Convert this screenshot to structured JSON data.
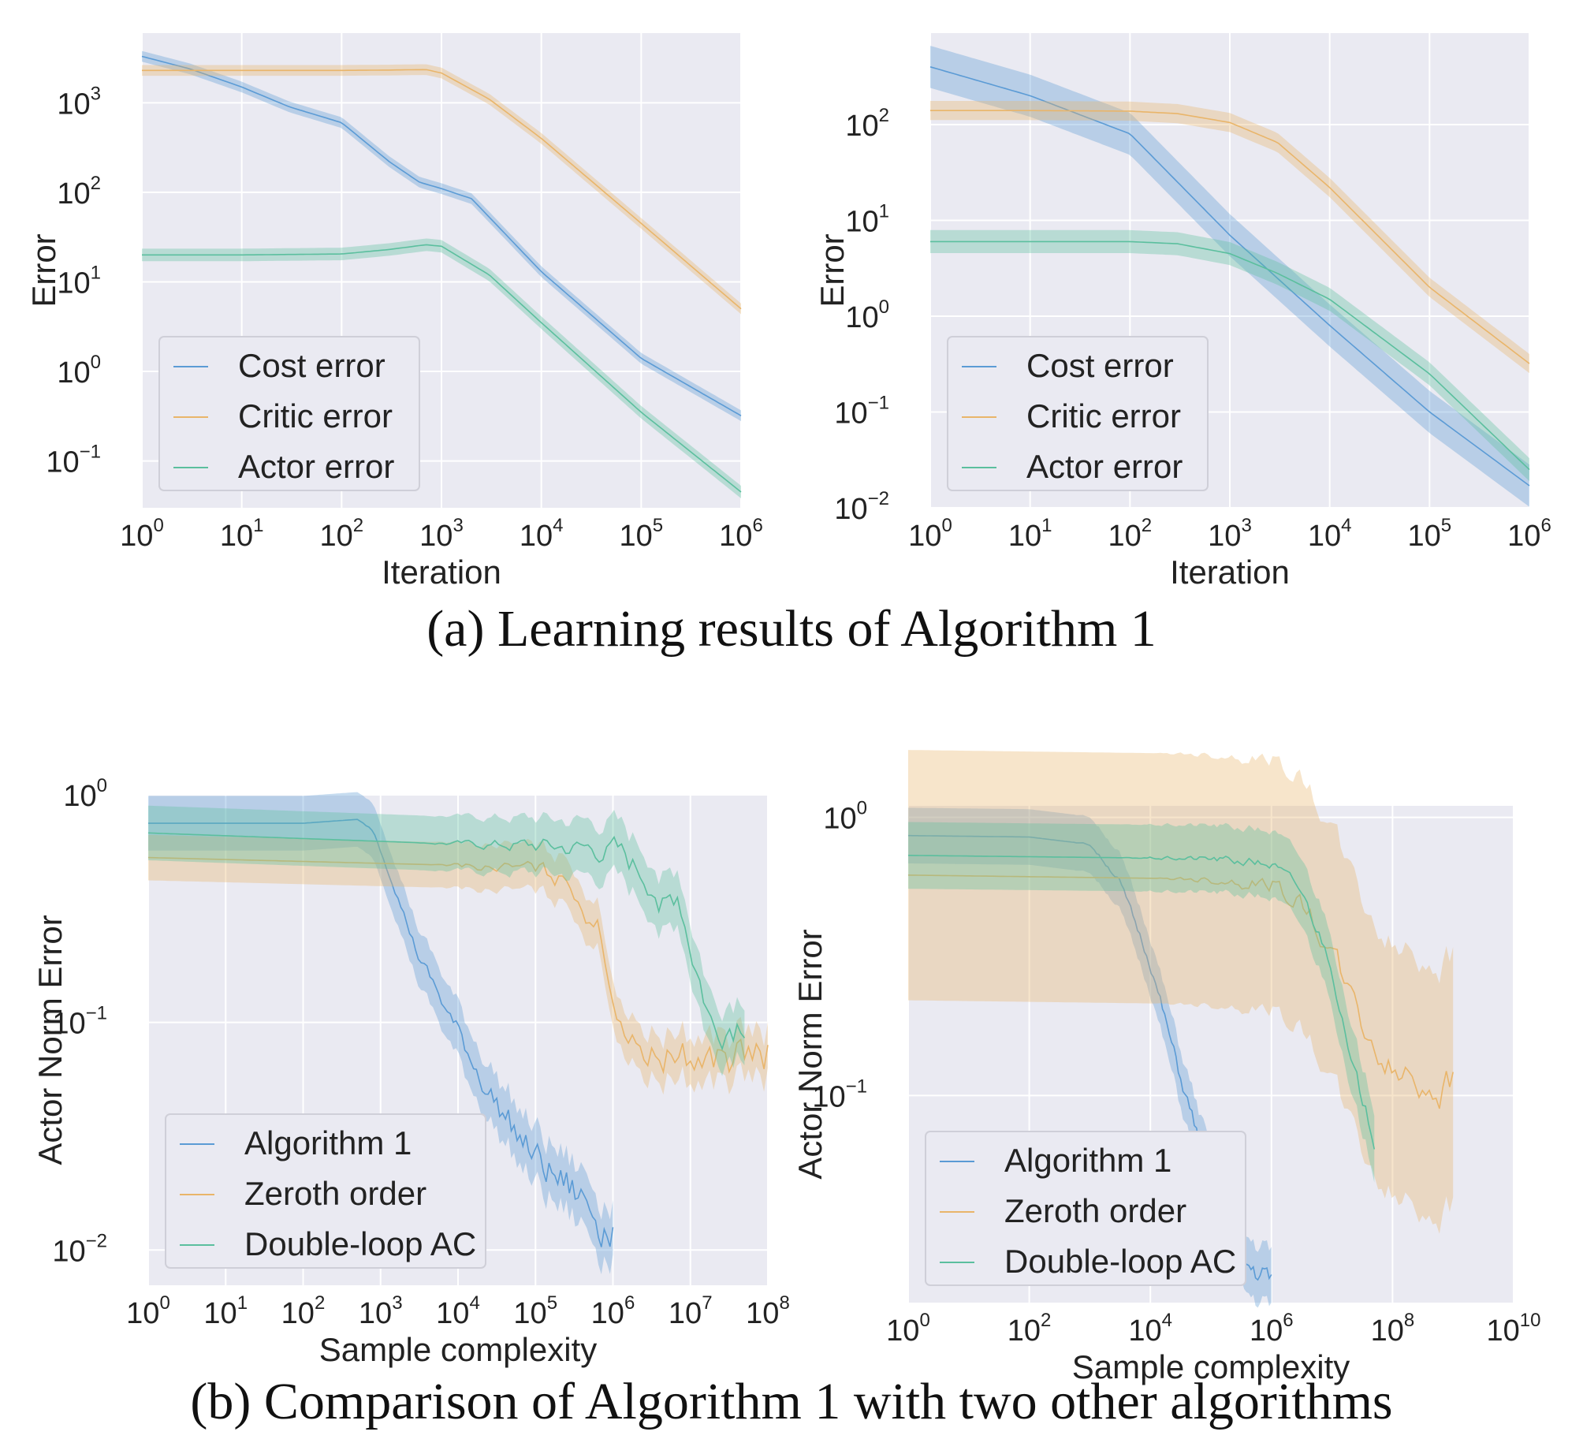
{
  "figure": {
    "caption_a": "(a) Learning results of Algorithm 1",
    "caption_b": "(b) Comparison of Algorithm 1 with two other algorithms"
  },
  "colors": {
    "panel_bg": "#EAEAF2",
    "grid": "#FFFFFF",
    "blue": "#5B9BD5",
    "orange": "#E9B56A",
    "green": "#5BBF9E"
  },
  "chart_data": [
    {
      "id": "a-left",
      "type": "line",
      "xscale": "log",
      "yscale": "log",
      "xlim": [
        1,
        1000000
      ],
      "ylim": [
        0.03,
        6000
      ],
      "xticks": [
        1,
        10,
        100,
        1000,
        10000,
        100000,
        1000000
      ],
      "xtick_exp": [
        "0",
        "1",
        "2",
        "3",
        "4",
        "5",
        "6"
      ],
      "yticks": [
        0.1,
        1,
        10,
        100,
        1000
      ],
      "ytick_exp": [
        "−1",
        "0",
        "1",
        "2",
        "3"
      ],
      "xlabel": "Iteration",
      "ylabel": "Error",
      "grid": true,
      "legend": "lower-left",
      "series": [
        {
          "name": "Cost error",
          "color": "blue",
          "x": [
            1,
            3,
            10,
            30,
            100,
            300,
            600,
            1000,
            2000,
            10000,
            100000,
            1000000
          ],
          "y": [
            3300,
            2400,
            1500,
            900,
            600,
            220,
            130,
            110,
            85,
            13,
            1.4,
            0.32
          ],
          "band": 0.06
        },
        {
          "name": "Critic error",
          "color": "orange",
          "x": [
            1,
            10,
            100,
            300,
            700,
            1000,
            3000,
            10000,
            100000,
            1000000
          ],
          "y": [
            2300,
            2300,
            2300,
            2320,
            2350,
            2150,
            1100,
            400,
            45,
            5
          ],
          "band": 0.06
        },
        {
          "name": "Actor error",
          "color": "green",
          "x": [
            1,
            10,
            100,
            300,
            700,
            1000,
            3000,
            10000,
            100000,
            1000000
          ],
          "y": [
            20,
            20,
            20.5,
            23,
            26,
            25,
            12,
            3.5,
            0.35,
            0.045
          ],
          "band": 0.07
        }
      ]
    },
    {
      "id": "a-right",
      "type": "line",
      "xscale": "log",
      "yscale": "log",
      "xlim": [
        1,
        1000000
      ],
      "ylim": [
        0.01,
        900
      ],
      "xticks": [
        1,
        10,
        100,
        1000,
        10000,
        100000,
        1000000
      ],
      "xtick_exp": [
        "0",
        "1",
        "2",
        "3",
        "4",
        "5",
        "6"
      ],
      "yticks": [
        0.01,
        0.1,
        1,
        10,
        100
      ],
      "ytick_exp": [
        "−2",
        "−1",
        "0",
        "1",
        "2"
      ],
      "xlabel": "Iteration",
      "ylabel": "Error",
      "grid": true,
      "legend": "lower-left",
      "series": [
        {
          "name": "Cost error",
          "color": "blue",
          "x": [
            1,
            10,
            100,
            1000,
            10000,
            100000,
            1000000
          ],
          "y": [
            400,
            200,
            80,
            7,
            0.8,
            0.1,
            0.017
          ],
          "band": 0.22
        },
        {
          "name": "Critic error",
          "color": "orange",
          "x": [
            1,
            10,
            100,
            300,
            1000,
            3000,
            10000,
            100000,
            1000000
          ],
          "y": [
            140,
            140,
            138,
            130,
            105,
            65,
            22,
            2,
            0.32
          ],
          "band": 0.1
        },
        {
          "name": "Actor error",
          "color": "green",
          "x": [
            1,
            10,
            100,
            300,
            1000,
            3000,
            10000,
            100000,
            1000000
          ],
          "y": [
            6,
            6,
            6,
            5.7,
            4.5,
            2.8,
            1.5,
            0.25,
            0.025
          ],
          "band": 0.12
        }
      ]
    },
    {
      "id": "b-left",
      "type": "line",
      "xscale": "log",
      "yscale": "log",
      "xlim": [
        1,
        100000000
      ],
      "ylim": [
        0.007,
        1.0
      ],
      "xticks": [
        1,
        10,
        100,
        1000,
        10000,
        100000,
        1000000,
        10000000,
        100000000
      ],
      "xtick_exp": [
        "0",
        "1",
        "2",
        "3",
        "4",
        "5",
        "6",
        "7",
        "8"
      ],
      "yticks": [
        0.01,
        0.1,
        1
      ],
      "ytick_exp": [
        "−2",
        "−1",
        "0"
      ],
      "xlabel": "Sample complexity",
      "ylabel": "Actor Norm Error",
      "grid": true,
      "legend": "lower-left",
      "series": [
        {
          "name": "Algorithm 1",
          "color": "blue",
          "x": [
            1,
            100,
            500,
            800,
            1500,
            3000,
            10000,
            30000,
            100000,
            300000,
            1000000
          ],
          "y": [
            0.75,
            0.75,
            0.78,
            0.7,
            0.4,
            0.2,
            0.09,
            0.045,
            0.025,
            0.018,
            0.013
          ],
          "band": 0.12,
          "noise": 0.35
        },
        {
          "name": "Zeroth order",
          "color": "orange",
          "x": [
            1,
            10000,
            100000,
            300000,
            700000,
            1000000,
            2000000,
            10000000,
            100000000
          ],
          "y": [
            0.53,
            0.49,
            0.47,
            0.4,
            0.25,
            0.13,
            0.075,
            0.07,
            0.07
          ],
          "band": 0.1,
          "noise": 0.35
        },
        {
          "name": "Double-loop AC",
          "color": "green",
          "x": [
            1,
            100000,
            1000000,
            3000000,
            5000000,
            7000000,
            10000000,
            20000000,
            30000000,
            50000000
          ],
          "y": [
            0.68,
            0.59,
            0.56,
            0.42,
            0.34,
            0.38,
            0.22,
            0.09,
            0.1,
            0.11
          ],
          "band": 0.12,
          "noise": 0.3
        }
      ]
    },
    {
      "id": "b-right",
      "type": "line",
      "xscale": "log",
      "yscale": "log",
      "xlim": [
        1,
        10000000000
      ],
      "ylim": [
        0.018,
        1.1
      ],
      "xticks": [
        1,
        100,
        10000,
        1000000,
        100000000,
        10000000000
      ],
      "xtick_exp": [
        "0",
        "2",
        "4",
        "6",
        "8",
        "10"
      ],
      "yticks": [
        0.1,
        1
      ],
      "ytick_exp": [
        "−1",
        "0"
      ],
      "xlabel": "Sample complexity",
      "ylabel": "Actor Norm Error",
      "grid": true,
      "legend": "lower-left",
      "series": [
        {
          "name": "Algorithm 1",
          "color": "blue",
          "x": [
            1,
            100,
            1000,
            3000,
            10000,
            30000,
            100000,
            300000,
            1000000
          ],
          "y": [
            0.86,
            0.85,
            0.8,
            0.6,
            0.3,
            0.12,
            0.05,
            0.025,
            0.022
          ],
          "band": 0.1,
          "noise": 0.15
        },
        {
          "name": "Zeroth order",
          "color": "orange",
          "x": [
            1,
            100000,
            1000000,
            3000000,
            10000000,
            30000000,
            100000000,
            1000000000
          ],
          "y": [
            0.62,
            0.6,
            0.58,
            0.5,
            0.32,
            0.18,
            0.12,
            0.11
          ],
          "band": 0.45,
          "noise": 0.25
        },
        {
          "name": "Double-loop AC",
          "color": "green",
          "x": [
            1,
            100000,
            1000000,
            3000000,
            10000000,
            20000000,
            50000000
          ],
          "y": [
            0.73,
            0.71,
            0.68,
            0.55,
            0.3,
            0.13,
            0.07
          ],
          "band": 0.12,
          "noise": 0.1
        }
      ]
    }
  ]
}
